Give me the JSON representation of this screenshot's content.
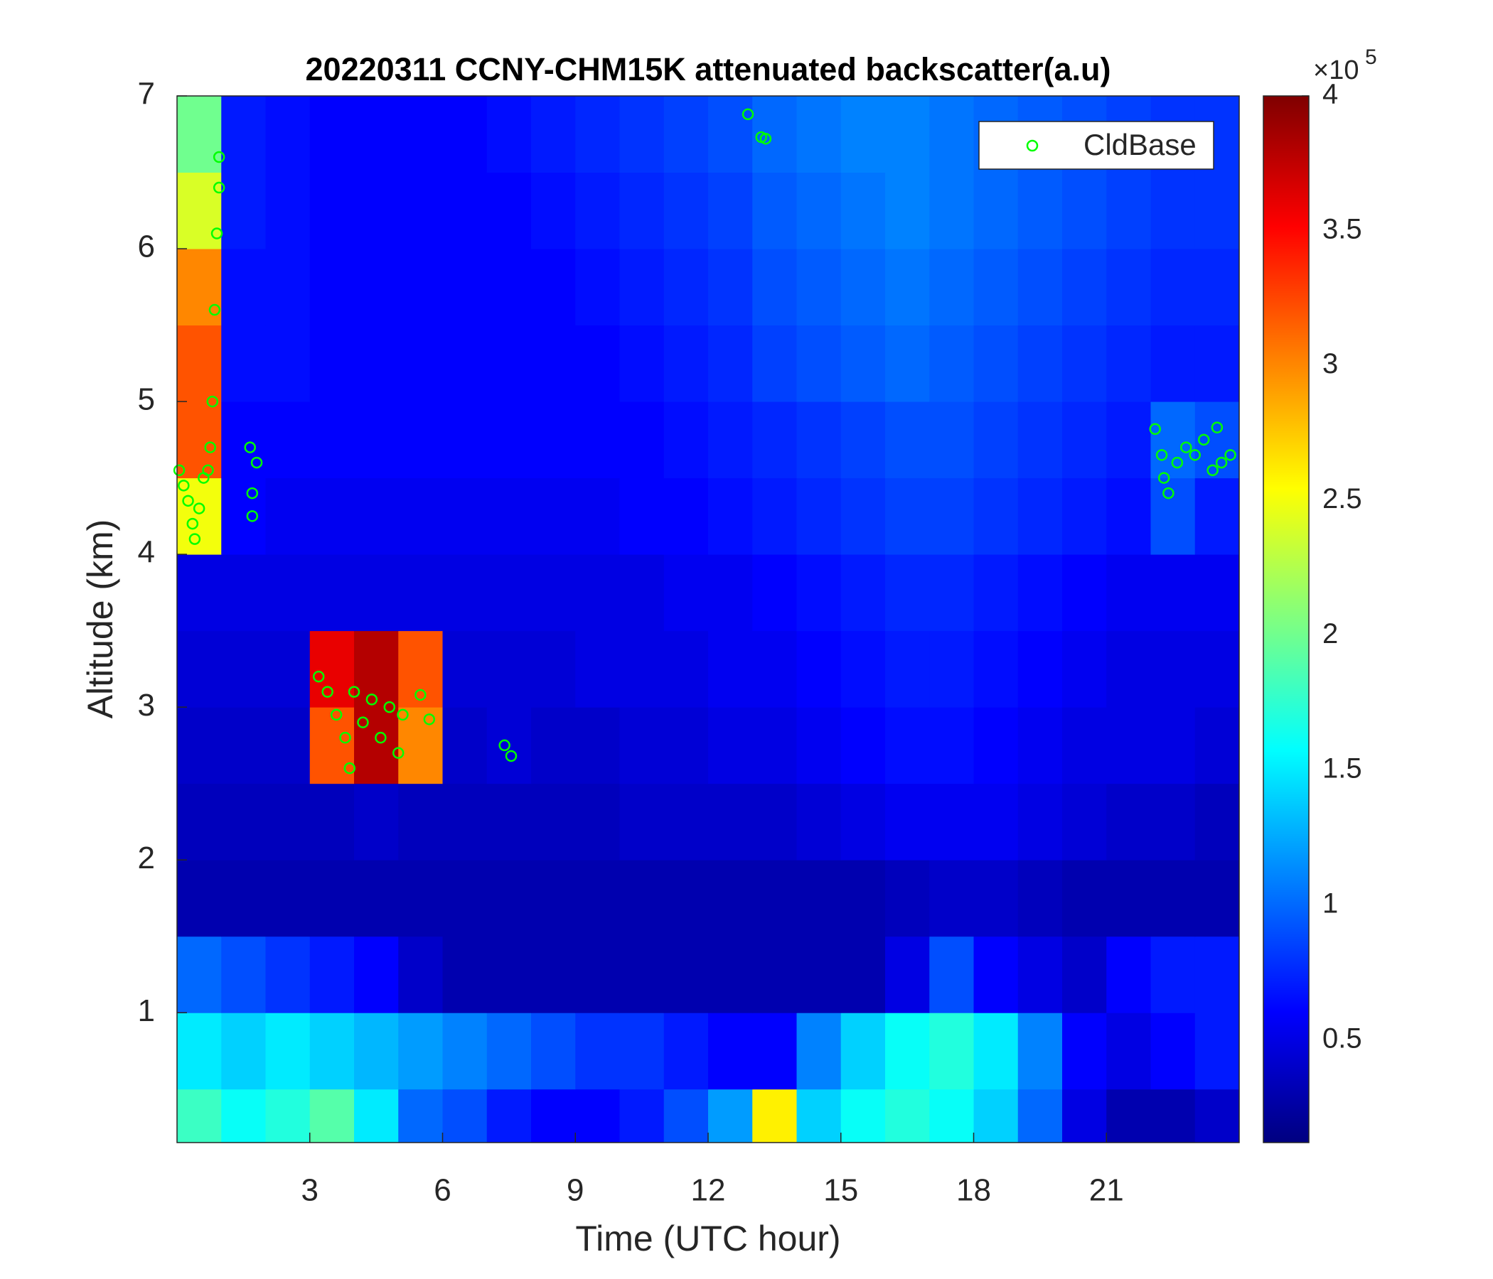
{
  "chart_data": {
    "type": "heatmap",
    "title": "20220311 CCNY-CHM15K attenuated backscatter(a.u)",
    "xlabel": "Time (UTC hour)",
    "ylabel": "Altitude (km)",
    "xlim": [
      0,
      24
    ],
    "ylim": [
      0.15,
      7
    ],
    "xticks": [
      3,
      6,
      9,
      12,
      15,
      18,
      21
    ],
    "yticks": [
      1,
      2,
      3,
      4,
      5,
      6,
      7
    ],
    "colormap": "jet",
    "clim": [
      0.12,
      4
    ],
    "cticks": [
      0.5,
      1,
      1.5,
      2,
      2.5,
      3,
      3.5,
      4
    ],
    "colorbar_exponent_base": "×10",
    "colorbar_exponent": "5",
    "legend": "northeast",
    "x_edges": [
      0,
      1,
      2,
      3,
      4,
      5,
      6,
      7,
      8,
      9,
      10,
      11,
      12,
      13,
      14,
      15,
      16,
      17,
      18,
      19,
      20,
      21,
      22,
      23,
      24
    ],
    "y_edges": [
      0.15,
      0.5,
      1,
      1.5,
      2,
      2.5,
      3,
      3.5,
      4,
      4.5,
      5,
      5.5,
      6,
      6.5,
      7
    ],
    "z": [
      [
        1.8,
        1.6,
        1.7,
        1.9,
        1.5,
        1.0,
        0.9,
        0.7,
        0.6,
        0.6,
        0.7,
        0.9,
        1.2,
        2.6,
        1.4,
        1.6,
        1.7,
        1.6,
        1.4,
        1.0,
        0.5,
        0.3,
        0.3,
        0.4
      ],
      [
        1.5,
        1.4,
        1.5,
        1.4,
        1.3,
        1.2,
        1.1,
        1.0,
        0.9,
        0.8,
        0.8,
        0.7,
        0.6,
        0.6,
        1.1,
        1.4,
        1.6,
        1.7,
        1.5,
        1.1,
        0.6,
        0.5,
        0.6,
        0.7
      ],
      [
        1.0,
        0.9,
        0.8,
        0.7,
        0.6,
        0.4,
        0.3,
        0.3,
        0.3,
        0.3,
        0.3,
        0.3,
        0.3,
        0.3,
        0.3,
        0.3,
        0.5,
        0.9,
        0.6,
        0.5,
        0.4,
        0.6,
        0.7,
        0.7
      ],
      [
        0.3,
        0.3,
        0.3,
        0.3,
        0.3,
        0.3,
        0.3,
        0.3,
        0.3,
        0.3,
        0.3,
        0.3,
        0.3,
        0.3,
        0.3,
        0.3,
        0.35,
        0.4,
        0.4,
        0.35,
        0.3,
        0.3,
        0.3,
        0.3
      ],
      [
        0.35,
        0.35,
        0.35,
        0.35,
        0.4,
        0.35,
        0.35,
        0.35,
        0.35,
        0.35,
        0.4,
        0.4,
        0.4,
        0.4,
        0.45,
        0.5,
        0.55,
        0.55,
        0.55,
        0.5,
        0.45,
        0.4,
        0.4,
        0.35
      ],
      [
        0.4,
        0.4,
        0.4,
        3.2,
        3.8,
        3.0,
        0.4,
        0.45,
        0.4,
        0.4,
        0.45,
        0.45,
        0.5,
        0.5,
        0.55,
        0.6,
        0.65,
        0.65,
        0.6,
        0.55,
        0.5,
        0.5,
        0.5,
        0.45
      ],
      [
        0.45,
        0.45,
        0.45,
        3.6,
        3.8,
        3.2,
        0.45,
        0.45,
        0.45,
        0.5,
        0.5,
        0.5,
        0.55,
        0.55,
        0.6,
        0.65,
        0.7,
        0.7,
        0.65,
        0.6,
        0.55,
        0.5,
        0.5,
        0.5
      ],
      [
        0.5,
        0.5,
        0.5,
        0.5,
        0.5,
        0.5,
        0.5,
        0.5,
        0.5,
        0.5,
        0.5,
        0.55,
        0.55,
        0.6,
        0.65,
        0.7,
        0.75,
        0.75,
        0.7,
        0.65,
        0.6,
        0.55,
        0.55,
        0.55
      ],
      [
        2.5,
        0.6,
        0.55,
        0.55,
        0.55,
        0.55,
        0.55,
        0.55,
        0.55,
        0.55,
        0.6,
        0.6,
        0.65,
        0.7,
        0.75,
        0.8,
        0.85,
        0.85,
        0.8,
        0.75,
        0.7,
        0.65,
        0.9,
        0.7
      ],
      [
        3.2,
        0.6,
        0.6,
        0.6,
        0.6,
        0.6,
        0.6,
        0.6,
        0.6,
        0.6,
        0.6,
        0.65,
        0.7,
        0.75,
        0.8,
        0.85,
        0.9,
        0.9,
        0.85,
        0.8,
        0.75,
        0.7,
        1.0,
        0.9
      ],
      [
        3.2,
        0.65,
        0.65,
        0.6,
        0.6,
        0.6,
        0.6,
        0.6,
        0.6,
        0.6,
        0.65,
        0.7,
        0.75,
        0.85,
        0.9,
        0.95,
        1.0,
        0.95,
        0.9,
        0.85,
        0.8,
        0.75,
        0.7,
        0.7
      ],
      [
        3.0,
        0.65,
        0.65,
        0.6,
        0.6,
        0.6,
        0.6,
        0.6,
        0.6,
        0.65,
        0.7,
        0.75,
        0.8,
        0.9,
        0.95,
        1.0,
        1.05,
        1.0,
        0.95,
        0.9,
        0.85,
        0.8,
        0.75,
        0.75
      ],
      [
        2.4,
        0.7,
        0.65,
        0.6,
        0.6,
        0.6,
        0.6,
        0.6,
        0.65,
        0.7,
        0.75,
        0.8,
        0.85,
        0.95,
        1.0,
        1.05,
        1.1,
        1.05,
        1.0,
        0.95,
        0.9,
        0.85,
        0.8,
        0.8
      ],
      [
        2.0,
        0.7,
        0.65,
        0.6,
        0.6,
        0.6,
        0.6,
        0.65,
        0.7,
        0.75,
        0.8,
        0.85,
        0.9,
        1.0,
        1.05,
        1.1,
        1.1,
        1.05,
        1.0,
        0.95,
        0.9,
        0.85,
        0.8,
        0.8
      ]
    ],
    "series": [
      {
        "name": "CldBase",
        "type": "scatter",
        "color": "#00ff00",
        "x": [
          0.05,
          0.15,
          0.25,
          0.35,
          0.4,
          0.5,
          0.6,
          0.7,
          0.75,
          0.8,
          0.85,
          0.9,
          0.95,
          0.95,
          1.65,
          1.7,
          1.7,
          1.8,
          3.2,
          3.4,
          3.6,
          3.8,
          3.9,
          4.0,
          4.2,
          4.4,
          4.6,
          4.8,
          5.0,
          5.1,
          5.5,
          5.7,
          7.4,
          7.55,
          12.9,
          13.2,
          13.3,
          22.1,
          22.25,
          22.3,
          22.4,
          22.6,
          22.8,
          23.0,
          23.2,
          23.4,
          23.5,
          23.6,
          23.8
        ],
        "y": [
          4.55,
          4.45,
          4.35,
          4.2,
          4.1,
          4.3,
          4.5,
          4.55,
          4.7,
          5.0,
          5.6,
          6.1,
          6.4,
          6.6,
          4.7,
          4.4,
          4.25,
          4.6,
          3.2,
          3.1,
          2.95,
          2.8,
          2.6,
          3.1,
          2.9,
          3.05,
          2.8,
          3.0,
          2.7,
          2.95,
          3.08,
          2.92,
          2.75,
          2.68,
          6.88,
          6.73,
          6.72,
          4.82,
          4.65,
          4.5,
          4.4,
          4.6,
          4.7,
          4.65,
          4.75,
          4.55,
          4.83,
          4.6,
          4.65
        ]
      }
    ]
  }
}
